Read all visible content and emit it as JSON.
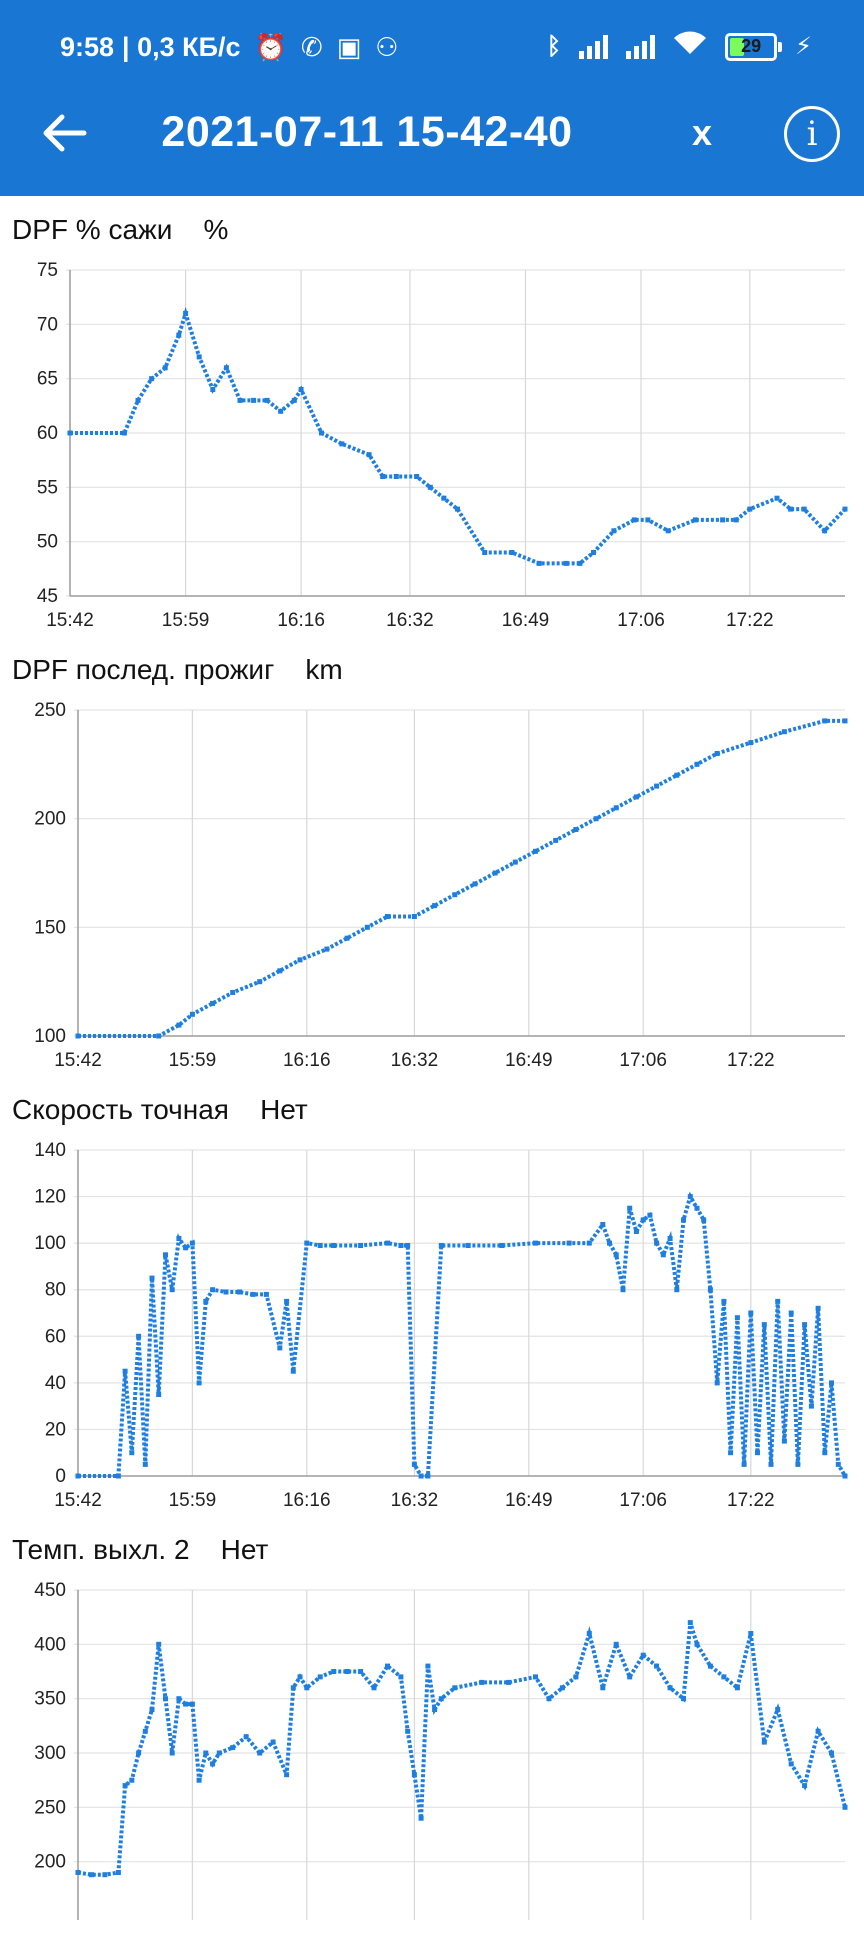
{
  "status_bar": {
    "time": "9:58",
    "net_speed": "| 0,3 КБ/с",
    "battery": "29",
    "icons": [
      "alarm-icon",
      "viber-icon",
      "teams-icon",
      "people-icon",
      "bluetooth-icon",
      "signal-icon",
      "signal-icon",
      "wifi-icon",
      "battery-icon",
      "charging-icon"
    ]
  },
  "header": {
    "title": "2021-07-11 15-42-40",
    "close_label": "x",
    "info_label": "i",
    "color": "#1976d2"
  },
  "colors": {
    "series": "#1e7fe0",
    "grid": "#e3e3e3",
    "axis": "#9e9e9e"
  },
  "charts": [
    {
      "title": "DPF % сажи    %"
    },
    {
      "title": "DPF послед. прожиг    km"
    },
    {
      "title": "Скорость точная    Нет"
    },
    {
      "title": "Темп. выхл. 2    Нет"
    }
  ],
  "chart_data": [
    {
      "type": "scatter",
      "title": "DPF % сажи",
      "ylabel": "%",
      "x_labels": [
        "15:42",
        "15:59",
        "16:16",
        "16:32",
        "16:49",
        "17:06",
        "17:22"
      ],
      "x_range": [
        "15:42",
        "17:36"
      ],
      "ylim": [
        45,
        75
      ],
      "y_ticks": [
        45,
        50,
        55,
        60,
        65,
        70,
        75
      ],
      "grid": true,
      "series": [
        {
          "x": [
            "15:42",
            "15:50",
            "15:52",
            "15:54",
            "15:56",
            "15:58",
            "15:59",
            "16:01",
            "16:03",
            "16:05",
            "16:07",
            "16:09",
            "16:11",
            "16:13",
            "16:15",
            "16:16",
            "16:19",
            "16:22",
            "16:26",
            "16:28",
            "16:30",
            "16:33",
            "16:35",
            "16:37",
            "16:39",
            "16:43",
            "16:47",
            "16:51",
            "16:55",
            "16:57",
            "16:59",
            "17:02",
            "17:05",
            "17:07",
            "17:10",
            "17:14",
            "17:18",
            "17:20",
            "17:22",
            "17:26",
            "17:28",
            "17:30",
            "17:33",
            "17:36"
          ],
          "y": [
            60,
            60,
            63,
            65,
            66,
            69,
            71,
            67,
            64,
            66,
            63,
            63,
            63,
            62,
            63,
            64,
            60,
            59,
            58,
            56,
            56,
            56,
            55,
            54,
            53,
            49,
            49,
            48,
            48,
            48,
            49,
            51,
            52,
            52,
            51,
            52,
            52,
            52,
            53,
            54,
            53,
            53,
            51,
            53
          ]
        }
      ]
    },
    {
      "type": "scatter",
      "title": "DPF послед. прожиг",
      "ylabel": "km",
      "x_labels": [
        "15:42",
        "15:59",
        "16:16",
        "16:32",
        "16:49",
        "17:06",
        "17:22"
      ],
      "x_range": [
        "15:42",
        "17:36"
      ],
      "ylim": [
        100,
        250
      ],
      "y_ticks": [
        100,
        150,
        200,
        250
      ],
      "grid": true,
      "series": [
        {
          "x": [
            "15:42",
            "15:54",
            "15:57",
            "15:59",
            "16:02",
            "16:05",
            "16:09",
            "16:12",
            "16:15",
            "16:19",
            "16:22",
            "16:25",
            "16:28",
            "16:32",
            "16:35",
            "16:38",
            "16:41",
            "16:44",
            "16:47",
            "16:50",
            "16:53",
            "16:56",
            "16:59",
            "17:02",
            "17:05",
            "17:08",
            "17:11",
            "17:14",
            "17:17",
            "17:22",
            "17:27",
            "17:33",
            "17:36"
          ],
          "y": [
            100,
            100,
            105,
            110,
            115,
            120,
            125,
            130,
            135,
            140,
            145,
            150,
            155,
            155,
            160,
            165,
            170,
            175,
            180,
            185,
            190,
            195,
            200,
            205,
            210,
            215,
            220,
            225,
            230,
            235,
            240,
            245,
            245
          ]
        }
      ]
    },
    {
      "type": "scatter",
      "title": "Скорость точная",
      "ylabel": "Нет",
      "x_labels": [
        "15:42",
        "15:59",
        "16:16",
        "16:32",
        "16:49",
        "17:06",
        "17:22"
      ],
      "x_range": [
        "15:42",
        "17:36"
      ],
      "ylim": [
        0,
        140
      ],
      "y_ticks": [
        0,
        20,
        40,
        60,
        80,
        100,
        120,
        140
      ],
      "grid": true,
      "series": [
        {
          "x": [
            "15:42",
            "15:48",
            "15:49",
            "15:50",
            "15:51",
            "15:52",
            "15:53",
            "15:54",
            "15:55",
            "15:56",
            "15:57",
            "15:58",
            "15:59",
            "16:00",
            "16:01",
            "16:02",
            "16:04",
            "16:06",
            "16:08",
            "16:10",
            "16:12",
            "16:13",
            "16:14",
            "16:16",
            "16:18",
            "16:20",
            "16:24",
            "16:28",
            "16:30",
            "16:31",
            "16:32",
            "16:33",
            "16:34",
            "16:36",
            "16:40",
            "16:45",
            "16:50",
            "16:55",
            "16:58",
            "17:00",
            "17:01",
            "17:02",
            "17:03",
            "17:04",
            "17:05",
            "17:06",
            "17:07",
            "17:08",
            "17:09",
            "17:10",
            "17:11",
            "17:12",
            "17:13",
            "17:14",
            "17:15",
            "17:16",
            "17:17",
            "17:18",
            "17:19",
            "17:20",
            "17:21",
            "17:22",
            "17:23",
            "17:24",
            "17:25",
            "17:26",
            "17:27",
            "17:28",
            "17:29",
            "17:30",
            "17:31",
            "17:32",
            "17:33",
            "17:34",
            "17:35",
            "17:36"
          ],
          "y": [
            0,
            0,
            45,
            10,
            60,
            5,
            85,
            35,
            95,
            80,
            102,
            98,
            100,
            40,
            75,
            80,
            79,
            79,
            78,
            78,
            55,
            75,
            45,
            100,
            99,
            99,
            99,
            100,
            99,
            99,
            5,
            0,
            0,
            99,
            99,
            99,
            100,
            100,
            100,
            108,
            100,
            95,
            80,
            115,
            105,
            110,
            112,
            100,
            95,
            102,
            80,
            110,
            120,
            115,
            110,
            80,
            40,
            75,
            10,
            68,
            5,
            70,
            10,
            65,
            5,
            75,
            15,
            70,
            5,
            65,
            30,
            72,
            10,
            40,
            5,
            0
          ]
        }
      ]
    },
    {
      "type": "scatter",
      "title": "Темп. выхл. 2",
      "ylabel": "Нет",
      "x_labels": [
        "15:42",
        "15:59",
        "16:16",
        "16:32",
        "16:49",
        "17:06",
        "17:22"
      ],
      "x_range": [
        "15:42",
        "17:36"
      ],
      "ylim": [
        150,
        450
      ],
      "y_ticks": [
        200,
        250,
        300,
        350,
        400,
        450
      ],
      "grid": true,
      "series": [
        {
          "x": [
            "15:42",
            "15:44",
            "15:46",
            "15:48",
            "15:49",
            "15:50",
            "15:51",
            "15:52",
            "15:53",
            "15:54",
            "15:55",
            "15:56",
            "15:57",
            "15:58",
            "15:59",
            "16:00",
            "16:01",
            "16:02",
            "16:03",
            "16:05",
            "16:07",
            "16:09",
            "16:11",
            "16:13",
            "16:14",
            "16:15",
            "16:16",
            "16:18",
            "16:20",
            "16:22",
            "16:24",
            "16:26",
            "16:28",
            "16:30",
            "16:31",
            "16:32",
            "16:33",
            "16:34",
            "16:35",
            "16:36",
            "16:38",
            "16:42",
            "16:46",
            "16:50",
            "16:52",
            "16:54",
            "16:56",
            "16:58",
            "17:00",
            "17:02",
            "17:04",
            "17:06",
            "17:08",
            "17:10",
            "17:12",
            "17:13",
            "17:14",
            "17:16",
            "17:18",
            "17:20",
            "17:22",
            "17:24",
            "17:26",
            "17:28",
            "17:30",
            "17:32",
            "17:34",
            "17:36"
          ],
          "y": [
            190,
            188,
            188,
            190,
            270,
            275,
            300,
            320,
            340,
            400,
            350,
            300,
            350,
            345,
            345,
            275,
            300,
            290,
            300,
            305,
            315,
            300,
            310,
            280,
            360,
            370,
            360,
            370,
            375,
            375,
            375,
            360,
            380,
            370,
            320,
            280,
            240,
            380,
            340,
            350,
            360,
            365,
            365,
            370,
            350,
            360,
            370,
            410,
            360,
            400,
            370,
            390,
            380,
            360,
            350,
            420,
            400,
            380,
            370,
            360,
            410,
            310,
            340,
            290,
            270,
            320,
            300,
            250
          ]
        }
      ]
    }
  ]
}
